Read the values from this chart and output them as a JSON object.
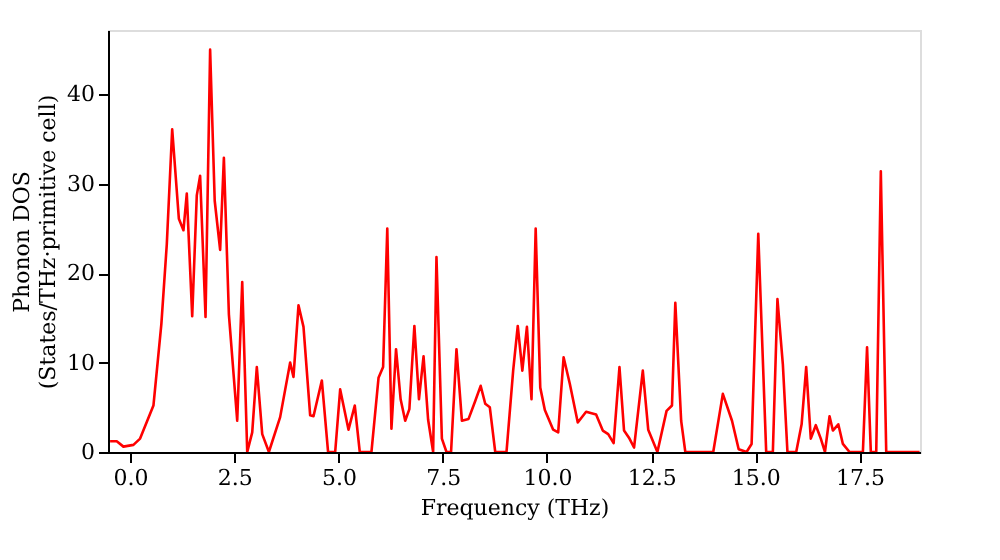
{
  "chart_data": {
    "type": "line",
    "xlabel": "Frequency (THz)",
    "ylabel": "Phonon DOS\n(States/THz·primitive cell)",
    "x": [
      -0.48,
      -0.32,
      -0.16,
      0.08,
      0.24,
      0.56,
      0.75,
      0.88,
      1.01,
      1.17,
      1.28,
      1.36,
      1.49,
      1.6,
      1.68,
      1.81,
      1.92,
      2.03,
      2.16,
      2.25,
      2.37,
      2.57,
      2.69,
      2.81,
      2.93,
      3.04,
      3.17,
      3.33,
      3.6,
      3.84,
      3.92,
      4.04,
      4.16,
      4.32,
      4.4,
      4.6,
      4.75,
      4.92,
      5.04,
      5.24,
      5.39,
      5.51,
      5.79,
      5.96,
      6.07,
      6.17,
      6.27,
      6.38,
      6.49,
      6.6,
      6.7,
      6.82,
      6.93,
      7.04,
      7.15,
      7.27,
      7.35,
      7.48,
      7.59,
      7.7,
      7.83,
      7.96,
      8.12,
      8.28,
      8.41,
      8.52,
      8.63,
      8.76,
      8.87,
      9.03,
      9.19,
      9.3,
      9.41,
      9.52,
      9.63,
      9.73,
      9.84,
      9.95,
      10.15,
      10.27,
      10.4,
      10.55,
      10.74,
      10.94,
      11.18,
      11.34,
      11.47,
      11.6,
      11.74,
      11.85,
      11.98,
      12.09,
      12.3,
      12.43,
      12.65,
      12.87,
      13.0,
      13.08,
      13.22,
      13.32,
      13.99,
      14.22,
      14.44,
      14.6,
      14.79,
      14.91,
      15.07,
      15.26,
      15.42,
      15.53,
      15.66,
      15.77,
      15.98,
      16.11,
      16.22,
      16.33,
      16.45,
      16.57,
      16.67,
      16.78,
      16.86,
      16.99,
      17.1,
      17.26,
      17.58,
      17.68,
      17.77,
      17.9,
      18.01,
      18.14,
      18.94
    ],
    "series": [
      {
        "color": "#ff0000",
        "values": [
          1.2,
          1.2,
          0.6,
          0.8,
          1.5,
          5.2,
          14.3,
          23.2,
          36.1,
          26.1,
          24.8,
          28.9,
          15.2,
          28.7,
          30.9,
          15.1,
          45.0,
          28.1,
          22.6,
          32.9,
          15.4,
          3.5,
          19.0,
          0,
          2.2,
          9.5,
          2.0,
          0,
          3.9,
          10.0,
          8.4,
          16.4,
          14.0,
          4.1,
          4.0,
          8.0,
          0,
          0,
          7.0,
          2.5,
          5.2,
          0,
          0,
          8.3,
          9.5,
          25.0,
          2.6,
          11.5,
          5.9,
          3.5,
          4.8,
          14.1,
          5.9,
          10.7,
          3.6,
          0,
          21.8,
          1.5,
          0,
          0,
          11.5,
          3.5,
          3.7,
          5.7,
          7.4,
          5.4,
          5.0,
          0,
          0,
          0,
          9.1,
          14.1,
          9.1,
          14.0,
          5.9,
          25.0,
          7.2,
          4.7,
          2.5,
          2.2,
          10.6,
          7.6,
          3.3,
          4.5,
          4.2,
          2.4,
          2.0,
          1.0,
          9.5,
          2.4,
          1.5,
          0.5,
          9.1,
          2.5,
          0,
          4.6,
          5.2,
          16.7,
          3.5,
          0,
          0,
          6.5,
          3.5,
          0.3,
          0,
          0.9,
          24.4,
          0,
          0,
          17.1,
          9.8,
          0,
          0,
          3.1,
          9.5,
          1.5,
          3.0,
          1.5,
          0,
          4.0,
          2.4,
          3.1,
          0.9,
          0,
          0,
          11.7,
          0,
          0,
          31.4,
          0,
          0
        ]
      }
    ],
    "xlim": [
      -0.53,
      18.95
    ],
    "ylim": [
      0,
      47.2
    ],
    "xticks": [
      {
        "value": 0,
        "label": "0.0"
      },
      {
        "value": 2.5,
        "label": "2.5"
      },
      {
        "value": 5,
        "label": "5.0"
      },
      {
        "value": 7.5,
        "label": "7.5"
      },
      {
        "value": 10,
        "label": "10.0"
      },
      {
        "value": 12.5,
        "label": "12.5"
      },
      {
        "value": 15,
        "label": "15.0"
      },
      {
        "value": 17.5,
        "label": "17.5"
      }
    ],
    "yticks": [
      0,
      10,
      20,
      30,
      40
    ],
    "grid": false,
    "line_style": "solid"
  }
}
